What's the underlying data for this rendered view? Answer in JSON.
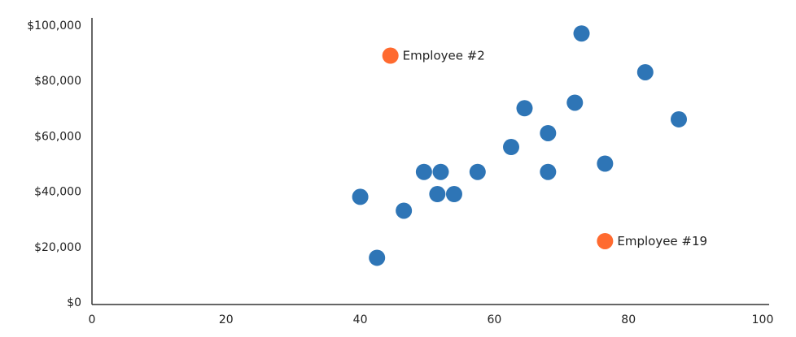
{
  "chart_data": {
    "type": "scatter",
    "title": "",
    "xlabel": "",
    "ylabel": "",
    "xlim": [
      0,
      100
    ],
    "ylim": [
      0,
      100000
    ],
    "x_ticks": [
      {
        "value": 0,
        "label": "0"
      },
      {
        "value": 20,
        "label": "20"
      },
      {
        "value": 40,
        "label": "40"
      },
      {
        "value": 60,
        "label": "60"
      },
      {
        "value": 80,
        "label": "80"
      },
      {
        "value": 100,
        "label": "100"
      }
    ],
    "y_ticks": [
      {
        "value": 0,
        "label": "$0"
      },
      {
        "value": 20000,
        "label": "$20,000"
      },
      {
        "value": 40000,
        "label": "$40,000"
      },
      {
        "value": 60000,
        "label": "$60,000"
      },
      {
        "value": 80000,
        "label": "$80,000"
      },
      {
        "value": 100000,
        "label": "$100,000"
      }
    ],
    "grid": false,
    "legend": "none",
    "colors": {
      "regular": "#2e75b6",
      "highlight": "#ff6a2f"
    },
    "points": [
      {
        "x": 40,
        "y": 38000
      },
      {
        "x": 42.5,
        "y": 16000
      },
      {
        "x": 46.5,
        "y": 33000
      },
      {
        "x": 49.5,
        "y": 47000
      },
      {
        "x": 52,
        "y": 47000
      },
      {
        "x": 51.5,
        "y": 39000
      },
      {
        "x": 54,
        "y": 39000
      },
      {
        "x": 57.5,
        "y": 47000
      },
      {
        "x": 62.5,
        "y": 56000
      },
      {
        "x": 64.5,
        "y": 70000
      },
      {
        "x": 68,
        "y": 61000
      },
      {
        "x": 68,
        "y": 47000
      },
      {
        "x": 72,
        "y": 72000
      },
      {
        "x": 73,
        "y": 97000
      },
      {
        "x": 76.5,
        "y": 50000
      },
      {
        "x": 82.5,
        "y": 83000
      },
      {
        "x": 87.5,
        "y": 66000
      }
    ],
    "highlighted_points": [
      {
        "x": 44.5,
        "y": 89000,
        "label": "Employee #2"
      },
      {
        "x": 76.5,
        "y": 22000,
        "label": "Employee #19"
      }
    ]
  }
}
